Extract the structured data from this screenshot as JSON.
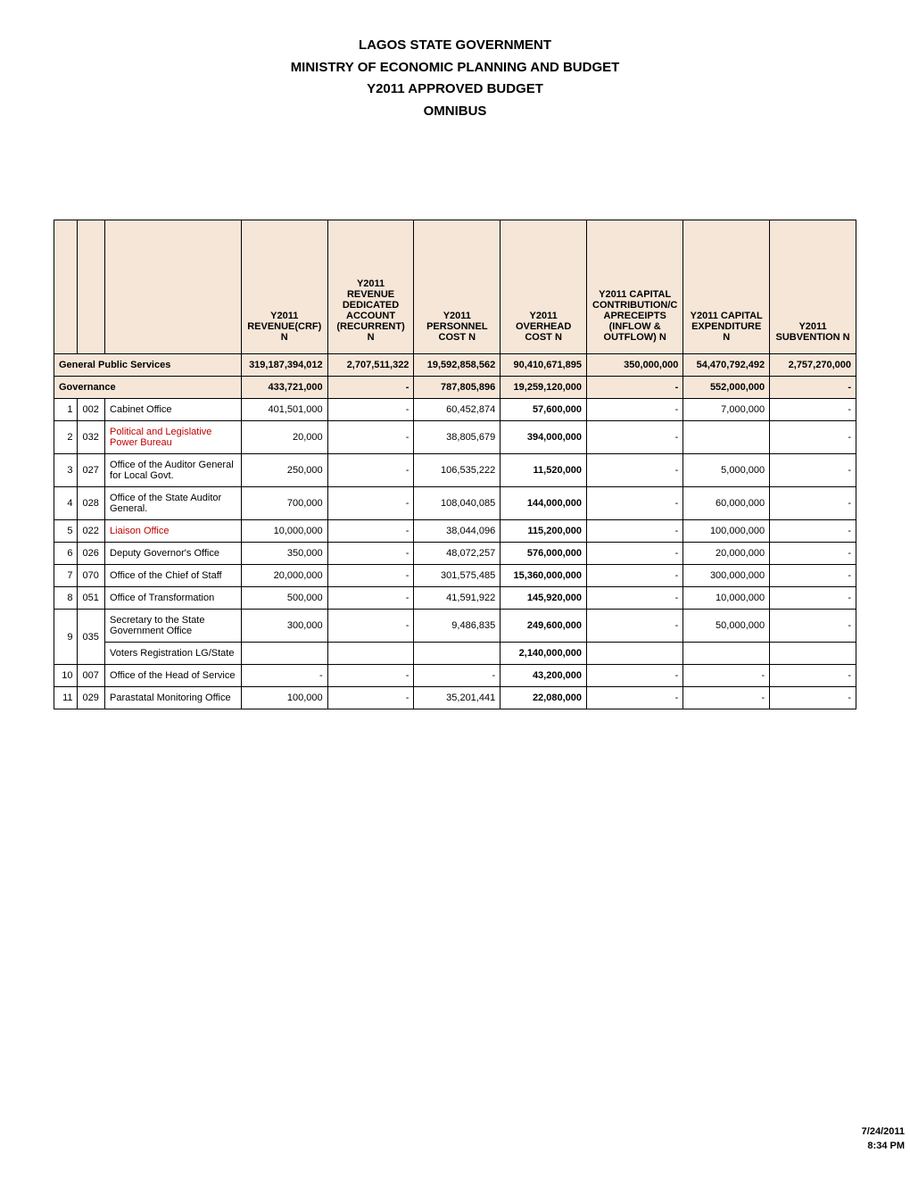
{
  "header": {
    "line1": "LAGOS STATE GOVERNMENT",
    "line2": "MINISTRY OF ECONOMIC PLANNING AND BUDGET",
    "line3": "Y2011 APPROVED BUDGET",
    "line4": "OMNIBUS"
  },
  "columns": [
    "Y2011 REVENUE(CRF) N",
    "Y2011 REVENUE DEDICATED ACCOUNT (RECURRENT) N",
    "Y2011 PERSONNEL COST N",
    "Y2011 OVERHEAD COST N",
    "Y2011 CAPITAL CONTRIBUTION/C APRECEIPTS (INFLOW & OUTFLOW) N",
    "Y2011 CAPITAL EXPENDITURE N",
    "Y2011 SUBVENTION N"
  ],
  "section1": {
    "name": "General Public Services",
    "revenue_crf": "319,187,394,012",
    "rev_ded": "2,707,511,322",
    "personnel": "19,592,858,562",
    "overhead": "90,410,671,895",
    "capital_contrib": "350,000,000",
    "capital_exp": "54,470,792,492",
    "subvention": "2,757,270,000"
  },
  "section2": {
    "name": "Governance",
    "revenue_crf": "433,721,000",
    "rev_ded": "-",
    "personnel": "787,805,896",
    "overhead": "19,259,120,000",
    "capital_contrib": "-",
    "capital_exp": "552,000,000",
    "subvention": "-"
  },
  "rows": [
    {
      "sn": "1",
      "code": "002",
      "name": "Cabinet Office",
      "red": false,
      "revenue_crf": "401,501,000",
      "rev_ded": "-",
      "personnel": "60,452,874",
      "overhead": "57,600,000",
      "capital_contrib": "-",
      "capital_exp": "7,000,000",
      "subvention": "-"
    },
    {
      "sn": "2",
      "code": "032",
      "name": "Political and Legislative Power Bureau",
      "red": true,
      "revenue_crf": "20,000",
      "rev_ded": "-",
      "personnel": "38,805,679",
      "overhead": "394,000,000",
      "capital_contrib": "-",
      "capital_exp": "",
      "subvention": "-"
    },
    {
      "sn": "3",
      "code": "027",
      "name": "Office of the Auditor General for Local Govt.",
      "red": false,
      "revenue_crf": "250,000",
      "rev_ded": "-",
      "personnel": "106,535,222",
      "overhead": "11,520,000",
      "capital_contrib": "-",
      "capital_exp": "5,000,000",
      "subvention": "-"
    },
    {
      "sn": "4",
      "code": "028",
      "name": "Office of the State Auditor General.",
      "red": false,
      "revenue_crf": "700,000",
      "rev_ded": "-",
      "personnel": "108,040,085",
      "overhead": "144,000,000",
      "capital_contrib": "-",
      "capital_exp": "60,000,000",
      "subvention": "-"
    },
    {
      "sn": "5",
      "code": "022",
      "name": "Liaison Office",
      "red": true,
      "revenue_crf": "10,000,000",
      "rev_ded": "-",
      "personnel": "38,044,096",
      "overhead": "115,200,000",
      "capital_contrib": "-",
      "capital_exp": "100,000,000",
      "subvention": "-"
    },
    {
      "sn": "6",
      "code": "026",
      "name": "Deputy Governor's Office",
      "red": false,
      "revenue_crf": "350,000",
      "rev_ded": "-",
      "personnel": "48,072,257",
      "overhead": "576,000,000",
      "capital_contrib": "-",
      "capital_exp": "20,000,000",
      "subvention": "-"
    },
    {
      "sn": "7",
      "code": "070",
      "name": "Office of the Chief of Staff",
      "red": false,
      "revenue_crf": "20,000,000",
      "rev_ded": "-",
      "personnel": "301,575,485",
      "overhead": "15,360,000,000",
      "capital_contrib": "-",
      "capital_exp": "300,000,000",
      "subvention": "-"
    },
    {
      "sn": "8",
      "code": "051",
      "name": "Office of Transformation",
      "red": false,
      "revenue_crf": "500,000",
      "rev_ded": "-",
      "personnel": "41,591,922",
      "overhead": "145,920,000",
      "capital_contrib": "-",
      "capital_exp": "10,000,000",
      "subvention": "-"
    },
    {
      "sn": "9",
      "code": "035",
      "name": "Secretary to the State Government Office",
      "red": false,
      "rowspan_top": true,
      "revenue_crf": "300,000",
      "rev_ded": "-",
      "personnel": "9,486,835",
      "overhead": "249,600,000",
      "capital_contrib": "-",
      "capital_exp": "50,000,000",
      "subvention": "-"
    },
    {
      "sn": "",
      "code": "",
      "name": "Voters Registration LG/State",
      "red": false,
      "rowspan_bottom": true,
      "revenue_crf": "",
      "rev_ded": "",
      "personnel": "",
      "overhead": "2,140,000,000",
      "capital_contrib": "",
      "capital_exp": "",
      "subvention": ""
    },
    {
      "sn": "10",
      "code": "007",
      "name": "Office of the Head of Service",
      "red": false,
      "revenue_crf": "-",
      "rev_ded": "-",
      "personnel": "-",
      "overhead": "43,200,000",
      "capital_contrib": "-",
      "capital_exp": "-",
      "subvention": "-"
    },
    {
      "sn": "11",
      "code": "029",
      "name": "Parastatal Monitoring Office",
      "red": false,
      "revenue_crf": "100,000",
      "rev_ded": "-",
      "personnel": "35,201,441",
      "overhead": "22,080,000",
      "capital_contrib": "-",
      "capital_exp": "-",
      "subvention": "-"
    }
  ],
  "footer": {
    "date": "7/24/2011",
    "time": "8:34 PM"
  },
  "style": {
    "header_bg": "#f5e6d8",
    "border_color": "#000000",
    "red_text": "#c00000",
    "page_bg": "#ffffff",
    "font_family": "Arial, Helvetica, sans-serif"
  }
}
